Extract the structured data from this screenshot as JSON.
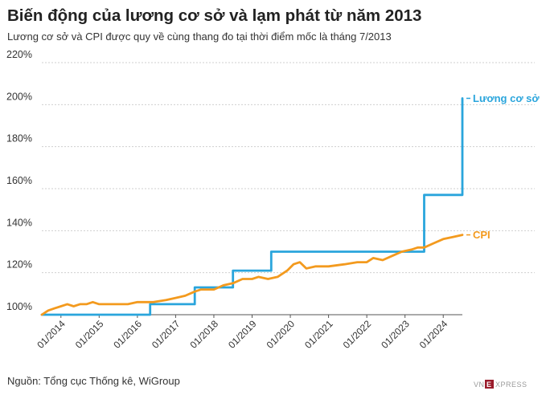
{
  "title": "Biến động của lương cơ sở và lạm phát từ năm 2013",
  "subtitle": "Lương cơ sở và CPI được quy về cùng thang đo tại thời điểm mốc là tháng 7/2013",
  "source": "Nguồn: Tổng cục Thống kê, WiGroup",
  "logo_text": "VNEXPRESS",
  "colors": {
    "luong": "#2aa5dc",
    "cpi": "#f39a1e",
    "grid": "#cfcfcf"
  },
  "chart_data": {
    "type": "line",
    "title": "Biến động của lương cơ sở và lạm phát từ năm 2013",
    "subtitle": "Lương cơ sở và CPI được quy về cùng thang đo tại thời điểm mốc là tháng 7/2013",
    "y_unit": "%",
    "ylim": [
      100,
      220
    ],
    "yticks": [
      100,
      120,
      140,
      160,
      180,
      200,
      220
    ],
    "ytick_labels": [
      "100%",
      "120%",
      "140%",
      "160%",
      "180%",
      "200%",
      "220%"
    ],
    "xlim": [
      "2013-07",
      "2024-07"
    ],
    "xticks": [
      "2014-01",
      "2015-01",
      "2016-01",
      "2017-01",
      "2018-01",
      "2019-01",
      "2020-01",
      "2021-01",
      "2022-01",
      "2023-01",
      "2024-01"
    ],
    "xtick_labels": [
      "01/2014",
      "01/2015",
      "01/2016",
      "01/2017",
      "01/2018",
      "01/2019",
      "01/2020",
      "01/2021",
      "01/2022",
      "01/2023",
      "01/2024"
    ],
    "grid": true,
    "legend": "end-of-line labels",
    "series": [
      {
        "name": "Lương cơ sở",
        "step": true,
        "points": [
          [
            "2013-07",
            100
          ],
          [
            "2016-05",
            105
          ],
          [
            "2017-07",
            113
          ],
          [
            "2018-07",
            121
          ],
          [
            "2019-07",
            130
          ],
          [
            "2023-07",
            157
          ],
          [
            "2024-06",
            157
          ],
          [
            "2024-07",
            203
          ]
        ]
      },
      {
        "name": "CPI",
        "step": false,
        "points": [
          [
            "2013-07",
            100
          ],
          [
            "2013-09",
            102
          ],
          [
            "2013-11",
            103
          ],
          [
            "2014-01",
            104
          ],
          [
            "2014-03",
            105
          ],
          [
            "2014-05",
            104
          ],
          [
            "2014-07",
            105
          ],
          [
            "2014-09",
            105
          ],
          [
            "2014-11",
            106
          ],
          [
            "2015-01",
            105
          ],
          [
            "2015-04",
            105
          ],
          [
            "2015-07",
            105
          ],
          [
            "2015-10",
            105
          ],
          [
            "2016-01",
            106
          ],
          [
            "2016-06",
            106
          ],
          [
            "2016-10",
            107
          ],
          [
            "2017-01",
            108
          ],
          [
            "2017-04",
            109
          ],
          [
            "2017-07",
            111
          ],
          [
            "2017-09",
            112
          ],
          [
            "2017-11",
            112
          ],
          [
            "2018-01",
            112
          ],
          [
            "2018-04",
            114
          ],
          [
            "2018-07",
            115
          ],
          [
            "2018-10",
            117
          ],
          [
            "2019-01",
            117
          ],
          [
            "2019-03",
            118
          ],
          [
            "2019-06",
            117
          ],
          [
            "2019-09",
            118
          ],
          [
            "2019-12",
            121
          ],
          [
            "2020-02",
            124
          ],
          [
            "2020-04",
            125
          ],
          [
            "2020-06",
            122
          ],
          [
            "2020-09",
            123
          ],
          [
            "2021-01",
            123
          ],
          [
            "2021-06",
            124
          ],
          [
            "2021-10",
            125
          ],
          [
            "2022-01",
            125
          ],
          [
            "2022-03",
            127
          ],
          [
            "2022-06",
            126
          ],
          [
            "2022-09",
            128
          ],
          [
            "2022-12",
            130
          ],
          [
            "2023-03",
            131
          ],
          [
            "2023-05",
            132
          ],
          [
            "2023-07",
            132
          ],
          [
            "2023-10",
            134
          ],
          [
            "2024-01",
            136
          ],
          [
            "2024-04",
            137
          ],
          [
            "2024-07",
            138
          ]
        ]
      }
    ]
  }
}
